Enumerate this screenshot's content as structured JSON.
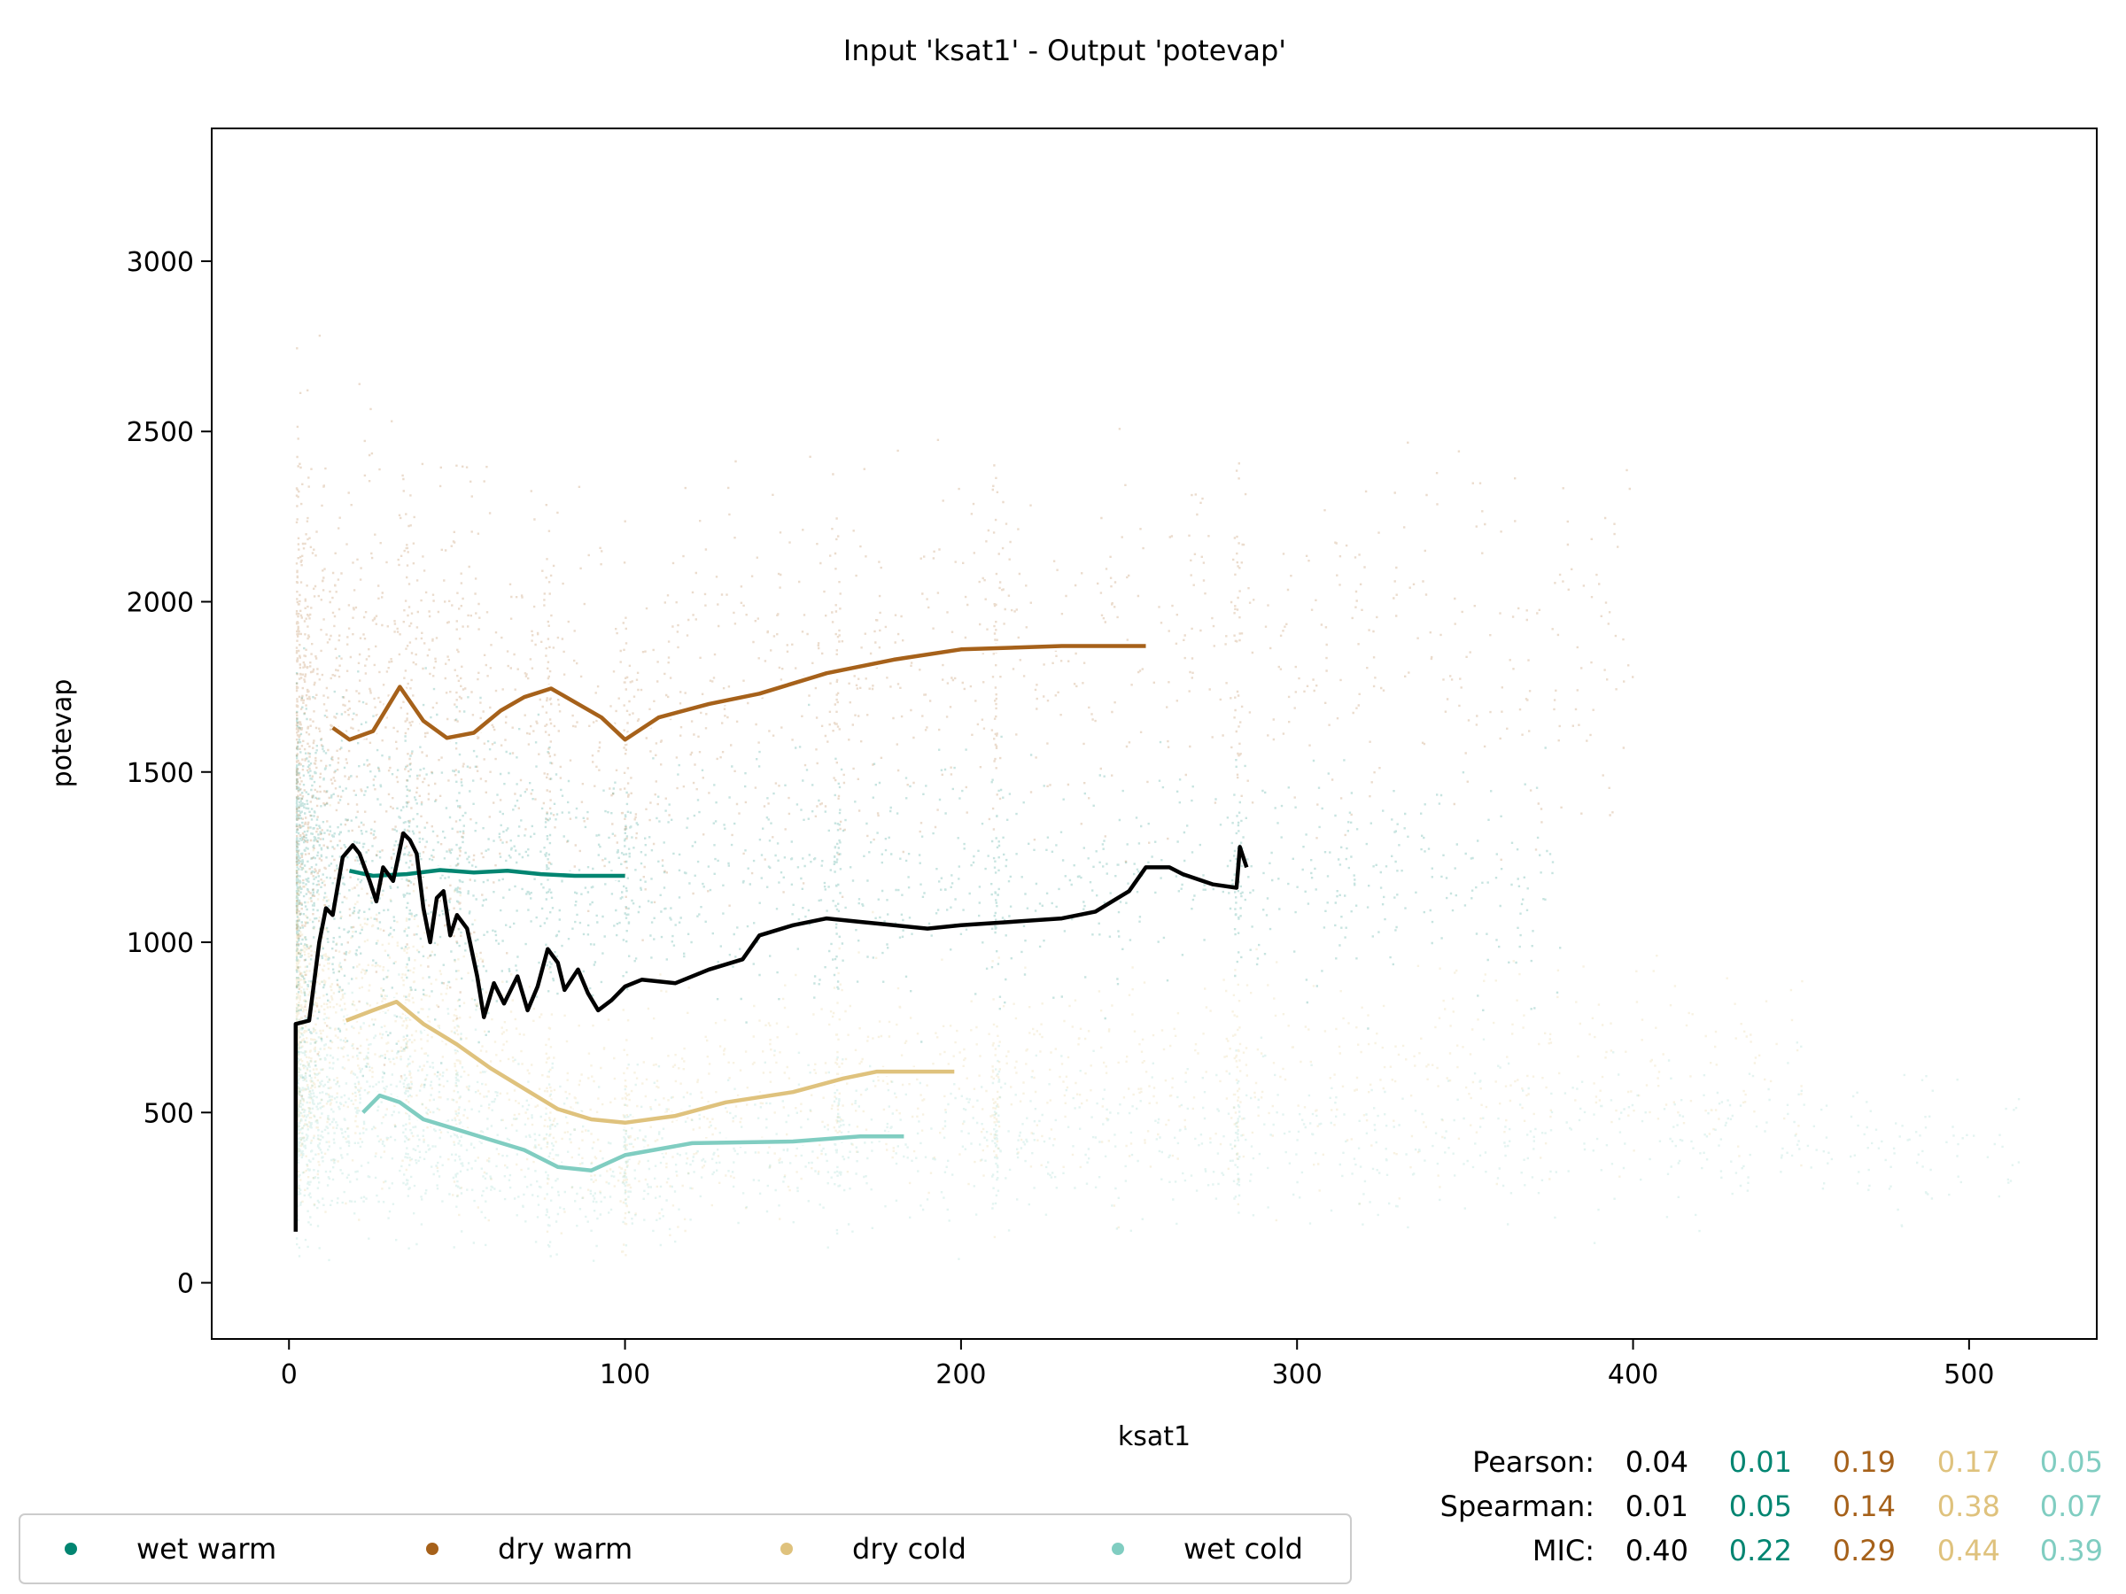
{
  "chart_data": {
    "type": "scatter",
    "title": "Input 'ksat1' - Output 'potevap'",
    "xlabel": "ksat1",
    "ylabel": "potevap",
    "xlim": [
      -23,
      538
    ],
    "ylim": [
      -165,
      3390
    ],
    "xticks": [
      0,
      100,
      200,
      300,
      400,
      500
    ],
    "yticks": [
      0,
      500,
      1000,
      1500,
      2000,
      2500,
      3000
    ],
    "grid": false,
    "legend_position": "bottom-left",
    "series": [
      {
        "name": "wet warm",
        "color": "#018571",
        "trend": [
          [
            18,
            1210
          ],
          [
            25,
            1195
          ],
          [
            35,
            1200
          ],
          [
            45,
            1212
          ],
          [
            55,
            1205
          ],
          [
            65,
            1210
          ],
          [
            75,
            1200
          ],
          [
            85,
            1195
          ],
          [
            100,
            1195
          ]
        ]
      },
      {
        "name": "dry warm",
        "color": "#a6611a",
        "trend": [
          [
            13,
            1630
          ],
          [
            18,
            1595
          ],
          [
            25,
            1620
          ],
          [
            33,
            1750
          ],
          [
            40,
            1650
          ],
          [
            47,
            1600
          ],
          [
            55,
            1615
          ],
          [
            63,
            1680
          ],
          [
            70,
            1720
          ],
          [
            78,
            1745
          ],
          [
            86,
            1700
          ],
          [
            93,
            1660
          ],
          [
            100,
            1595
          ],
          [
            110,
            1660
          ],
          [
            125,
            1700
          ],
          [
            140,
            1730
          ],
          [
            160,
            1790
          ],
          [
            180,
            1830
          ],
          [
            200,
            1860
          ],
          [
            230,
            1870
          ],
          [
            255,
            1870
          ]
        ]
      },
      {
        "name": "dry cold",
        "color": "#dfc27d",
        "trend": [
          [
            17,
            770
          ],
          [
            25,
            800
          ],
          [
            32,
            825
          ],
          [
            40,
            760
          ],
          [
            50,
            700
          ],
          [
            60,
            630
          ],
          [
            70,
            570
          ],
          [
            80,
            510
          ],
          [
            90,
            480
          ],
          [
            100,
            470
          ],
          [
            115,
            490
          ],
          [
            130,
            530
          ],
          [
            150,
            560
          ],
          [
            165,
            600
          ],
          [
            175,
            620
          ],
          [
            198,
            620
          ]
        ]
      },
      {
        "name": "wet cold",
        "color": "#80cdc1",
        "trend": [
          [
            22,
            500
          ],
          [
            27,
            550
          ],
          [
            33,
            530
          ],
          [
            40,
            480
          ],
          [
            50,
            450
          ],
          [
            60,
            420
          ],
          [
            70,
            390
          ],
          [
            80,
            340
          ],
          [
            90,
            330
          ],
          [
            100,
            375
          ],
          [
            120,
            410
          ],
          [
            150,
            415
          ],
          [
            170,
            430
          ],
          [
            183,
            430
          ]
        ]
      }
    ],
    "overall_trend": {
      "color": "#000000",
      "points": [
        [
          2,
          150
        ],
        [
          2,
          760
        ],
        [
          6,
          770
        ],
        [
          9,
          1000
        ],
        [
          11,
          1100
        ],
        [
          13,
          1080
        ],
        [
          16,
          1250
        ],
        [
          19,
          1285
        ],
        [
          21,
          1260
        ],
        [
          24,
          1180
        ],
        [
          26,
          1120
        ],
        [
          28,
          1220
        ],
        [
          31,
          1180
        ],
        [
          34,
          1320
        ],
        [
          36,
          1300
        ],
        [
          38,
          1260
        ],
        [
          40,
          1100
        ],
        [
          42,
          1000
        ],
        [
          44,
          1130
        ],
        [
          46,
          1150
        ],
        [
          48,
          1020
        ],
        [
          50,
          1080
        ],
        [
          53,
          1040
        ],
        [
          56,
          900
        ],
        [
          58,
          780
        ],
        [
          61,
          880
        ],
        [
          64,
          820
        ],
        [
          68,
          900
        ],
        [
          71,
          800
        ],
        [
          74,
          870
        ],
        [
          77,
          980
        ],
        [
          80,
          940
        ],
        [
          82,
          860
        ],
        [
          86,
          920
        ],
        [
          89,
          850
        ],
        [
          92,
          800
        ],
        [
          96,
          830
        ],
        [
          100,
          870
        ],
        [
          105,
          890
        ],
        [
          115,
          880
        ],
        [
          125,
          920
        ],
        [
          135,
          950
        ],
        [
          140,
          1020
        ],
        [
          150,
          1050
        ],
        [
          160,
          1070
        ],
        [
          170,
          1060
        ],
        [
          180,
          1050
        ],
        [
          190,
          1040
        ],
        [
          200,
          1050
        ],
        [
          215,
          1060
        ],
        [
          230,
          1070
        ],
        [
          240,
          1090
        ],
        [
          250,
          1150
        ],
        [
          255,
          1220
        ],
        [
          262,
          1220
        ],
        [
          266,
          1200
        ],
        [
          275,
          1170
        ],
        [
          282,
          1160
        ],
        [
          283,
          1280
        ],
        [
          285,
          1220
        ]
      ]
    },
    "stats": {
      "labels": [
        "Pearson:",
        "Spearman:",
        "MIC:"
      ],
      "rows": [
        [
          "0.04",
          "0.01",
          "0.19",
          "0.17",
          "0.05"
        ],
        [
          "0.01",
          "0.05",
          "0.14",
          "0.38",
          "0.07"
        ],
        [
          "0.40",
          "0.22",
          "0.29",
          "0.44",
          "0.39"
        ]
      ],
      "colors": [
        "#000000",
        "#018571",
        "#a6611a",
        "#dfc27d",
        "#80cdc1"
      ]
    }
  }
}
